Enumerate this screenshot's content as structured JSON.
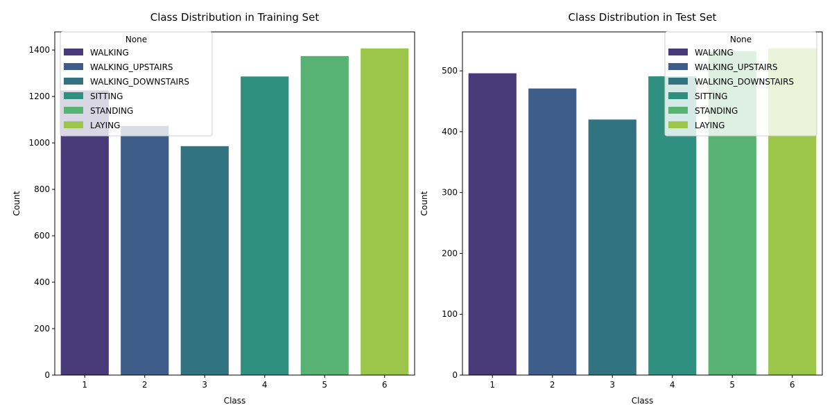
{
  "chart_data": [
    {
      "type": "bar",
      "title": "Class Distribution in Training Set",
      "xlabel": "Class",
      "ylabel": "Count",
      "categories": [
        "1",
        "2",
        "3",
        "4",
        "5",
        "6"
      ],
      "values": [
        1226,
        1073,
        986,
        1286,
        1374,
        1407
      ],
      "ylim": [
        0,
        1478
      ],
      "yticks": [
        0,
        200,
        400,
        600,
        800,
        1000,
        1200,
        1400
      ],
      "grid": false,
      "legend": {
        "title": "None",
        "placement": "top-left",
        "labels": [
          "WALKING",
          "WALKING_UPSTAIRS",
          "WALKING_DOWNSTAIRS",
          "SITTING",
          "STANDING",
          "LAYING"
        ]
      }
    },
    {
      "type": "bar",
      "title": "Class Distribution in Test Set",
      "xlabel": "Class",
      "ylabel": "Count",
      "categories": [
        "1",
        "2",
        "3",
        "4",
        "5",
        "6"
      ],
      "values": [
        496,
        471,
        420,
        491,
        532,
        537
      ],
      "ylim": [
        0,
        564
      ],
      "yticks": [
        0,
        100,
        200,
        300,
        400,
        500
      ],
      "grid": false,
      "legend": {
        "title": "None",
        "placement": "top-right",
        "labels": [
          "WALKING",
          "WALKING_UPSTAIRS",
          "WALKING_DOWNSTAIRS",
          "SITTING",
          "STANDING",
          "LAYING"
        ]
      }
    }
  ],
  "colors": [
    "#483a78",
    "#3e5d88",
    "#317380",
    "#2f9080",
    "#58b271",
    "#9cc64a"
  ]
}
